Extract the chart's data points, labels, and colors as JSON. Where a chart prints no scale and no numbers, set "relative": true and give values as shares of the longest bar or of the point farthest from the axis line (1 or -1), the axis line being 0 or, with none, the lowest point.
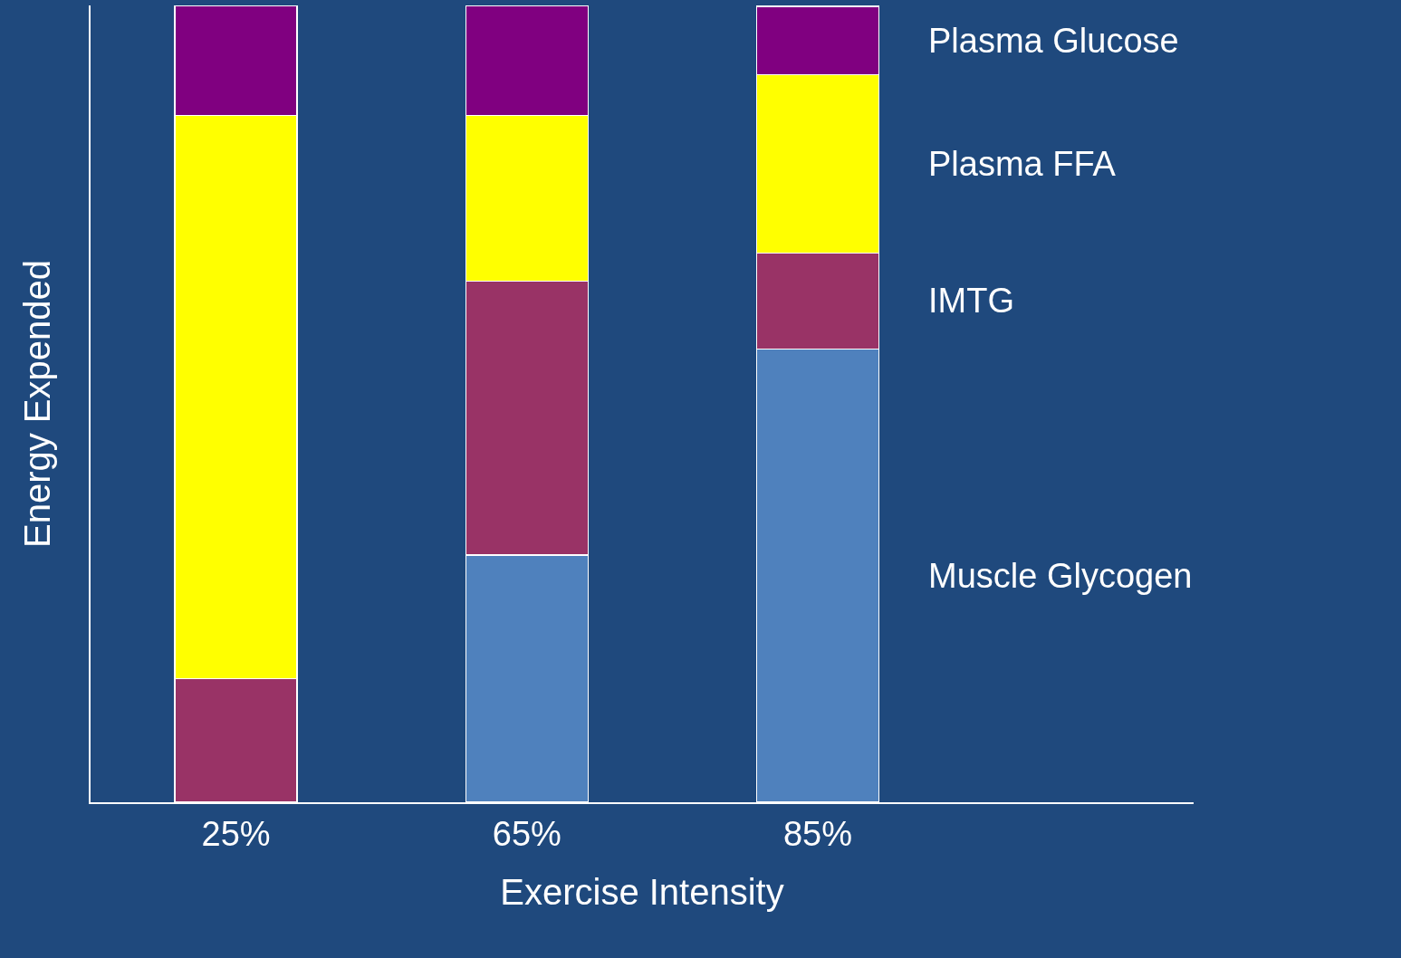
{
  "chart_data": {
    "type": "bar",
    "stacked": true,
    "relative": true,
    "xlabel": "Exercise Intensity",
    "ylabel": "Energy Expended",
    "categories": [
      "25%",
      "65%",
      "85%"
    ],
    "series": [
      {
        "name": "Muscle Glycogen",
        "color": "#4f81bd",
        "values": [
          0,
          0.31,
          0.569
        ]
      },
      {
        "name": "IMTG",
        "color": "#993366",
        "values": [
          0.155,
          0.344,
          0.12
        ]
      },
      {
        "name": "Plasma FFA",
        "color": "#ffff00",
        "values": [
          0.707,
          0.208,
          0.224
        ]
      },
      {
        "name": "Plasma Glucose",
        "color": "#800080",
        "values": [
          0.138,
          0.138,
          0.086
        ]
      }
    ],
    "legend": false,
    "grid": false
  }
}
